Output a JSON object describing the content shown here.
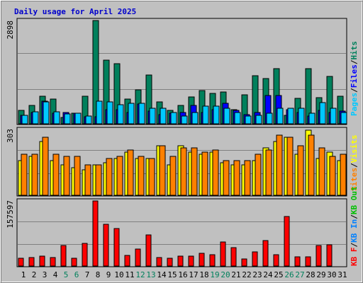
{
  "chart_data": {
    "type": "bar",
    "title": "Daily usage for April 2025",
    "days": [
      1,
      2,
      3,
      4,
      5,
      6,
      7,
      8,
      9,
      10,
      11,
      12,
      13,
      14,
      15,
      16,
      17,
      18,
      19,
      20,
      21,
      22,
      23,
      24,
      25,
      26,
      27,
      28,
      29,
      30,
      31
    ],
    "weekend_days": [
      5,
      6,
      12,
      13,
      19,
      20,
      26,
      27
    ],
    "colors": {
      "title": "#0000cc",
      "hits": "#00805c",
      "files": "#0000ff",
      "pages": "#00c8ff",
      "visits": "#ffff00",
      "sites": "#ff8000",
      "kb_f": "#ff0000",
      "kb_in": "#0080ff",
      "kb_out": "#00c000",
      "weekend_label": "#00805c",
      "weekday_label": "#000000"
    },
    "panels": {
      "top": {
        "max_label": "2898",
        "ymax": 2898,
        "legend": {
          "pages": "Pages",
          "files": "Files",
          "hits": "Hits",
          "sep": "/"
        },
        "series": {
          "hits": [
            380,
            520,
            780,
            700,
            170,
            300,
            780,
            2898,
            1780,
            1680,
            700,
            960,
            1360,
            620,
            370,
            520,
            750,
            940,
            850,
            900,
            390,
            820,
            1340,
            1280,
            1540,
            230,
            720,
            1550,
            730,
            1320,
            780
          ],
          "files": [
            230,
            310,
            630,
            300,
            310,
            300,
            200,
            200,
            400,
            400,
            310,
            560,
            350,
            250,
            300,
            310,
            510,
            320,
            400,
            580,
            380,
            250,
            320,
            800,
            800,
            400,
            320,
            210,
            380,
            320,
            360
          ],
          "pages": [
            240,
            340,
            620,
            330,
            270,
            290,
            220,
            630,
            620,
            530,
            580,
            580,
            440,
            440,
            310,
            210,
            310,
            490,
            500,
            430,
            320,
            220,
            240,
            300,
            440,
            440,
            440,
            290,
            600,
            430,
            310
          ]
        }
      },
      "middle": {
        "max_label": "303",
        "ymax": 303,
        "legend": {
          "sites": "Sites",
          "visits": "Visits",
          "sep": "/"
        },
        "series": {
          "visits": [
            160,
            180,
            250,
            160,
            140,
            130,
            120,
            140,
            150,
            170,
            200,
            170,
            170,
            230,
            140,
            230,
            200,
            190,
            200,
            150,
            140,
            140,
            160,
            220,
            250,
            270,
            190,
            303,
            170,
            200,
            160
          ],
          "sites": [
            190,
            190,
            270,
            190,
            180,
            180,
            140,
            140,
            170,
            180,
            210,
            180,
            170,
            230,
            180,
            220,
            220,
            200,
            210,
            160,
            160,
            160,
            190,
            210,
            280,
            270,
            230,
            280,
            220,
            180,
            190
          ]
        }
      },
      "bottom": {
        "max_label": "157597",
        "ymax": 157597,
        "legend": {
          "kb_f": "KB F",
          "kb_in": "KB In",
          "kb_out": "KB Out",
          "sep": "/"
        },
        "series": {
          "kb_f": [
            18000,
            20000,
            24000,
            20000,
            50000,
            18000,
            55000,
            157597,
            101000,
            91000,
            26000,
            41000,
            76000,
            20000,
            18000,
            24000,
            24000,
            30000,
            28000,
            59000,
            45000,
            17000,
            34000,
            62000,
            28000,
            120000,
            22000,
            22000,
            50000,
            52000,
            0
          ]
        }
      }
    }
  }
}
